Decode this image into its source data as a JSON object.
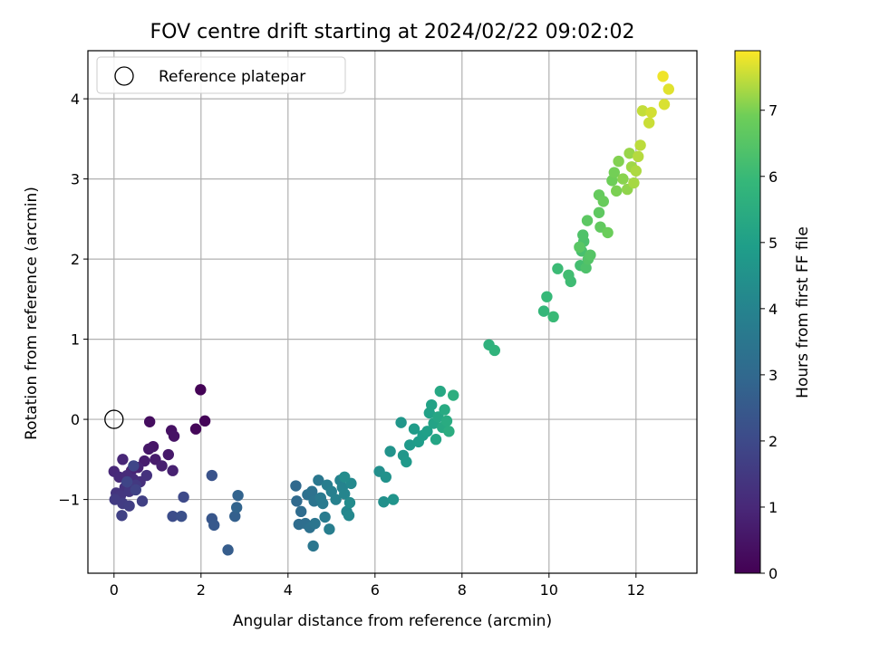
{
  "chart_data": {
    "type": "scatter",
    "title": "FOV centre drift starting at 2024/02/22 09:02:02",
    "xlabel": "Angular distance from reference (arcmin)",
    "ylabel": "Rotation from reference (arcmin)",
    "xlim": [
      -0.6,
      13.4
    ],
    "ylim": [
      -1.92,
      4.6
    ],
    "xticks": [
      0,
      2,
      4,
      6,
      8,
      10,
      12
    ],
    "yticks": [
      -1,
      0,
      1,
      2,
      3,
      4
    ],
    "grid": true,
    "legend": {
      "position": "top-left",
      "entries": [
        "Reference platepar"
      ]
    },
    "colorbar": {
      "label": "Hours from first FF file",
      "range": [
        0,
        7.9
      ],
      "ticks": [
        0,
        1,
        2,
        3,
        4,
        5,
        6,
        7
      ],
      "colormap": "viridis"
    },
    "colors": {
      "grid": "#b0b0b0",
      "reference_marker": "#000000"
    },
    "reference": {
      "x": 0,
      "y": 0
    },
    "points": [
      [
        1.99,
        0.37,
        0.05
      ],
      [
        2.09,
        -0.02,
        0.1
      ],
      [
        1.88,
        -0.12,
        0.15
      ],
      [
        0.82,
        -0.03,
        0.3
      ],
      [
        1.32,
        -0.14,
        0.4
      ],
      [
        1.38,
        -0.21,
        0.45
      ],
      [
        0.9,
        -0.34,
        0.5
      ],
      [
        0.8,
        -0.37,
        0.55
      ],
      [
        1.25,
        -0.44,
        0.6
      ],
      [
        0.95,
        -0.5,
        0.65
      ],
      [
        0.7,
        -0.52,
        0.7
      ],
      [
        1.1,
        -0.58,
        0.75
      ],
      [
        1.35,
        -0.64,
        0.8
      ],
      [
        0.55,
        -0.6,
        0.85
      ],
      [
        0.4,
        -0.64,
        0.9
      ],
      [
        0.2,
        -0.5,
        0.95
      ],
      [
        0.0,
        -0.65,
        1.0
      ],
      [
        0.12,
        -0.72,
        1.05
      ],
      [
        0.3,
        -0.7,
        1.1
      ],
      [
        0.45,
        -0.75,
        1.15
      ],
      [
        0.6,
        -0.78,
        1.2
      ],
      [
        0.75,
        -0.7,
        1.25
      ],
      [
        0.25,
        -0.85,
        1.3
      ],
      [
        0.05,
        -0.92,
        1.35
      ],
      [
        0.15,
        -0.95,
        1.4
      ],
      [
        0.35,
        -0.9,
        1.45
      ],
      [
        0.5,
        -0.82,
        1.5
      ],
      [
        0.02,
        -1.0,
        1.55
      ],
      [
        0.2,
        -1.05,
        1.6
      ],
      [
        0.35,
        -1.08,
        1.65
      ],
      [
        0.65,
        -1.02,
        1.7
      ],
      [
        0.18,
        -1.2,
        1.75
      ],
      [
        0.5,
        -0.88,
        1.8
      ],
      [
        0.3,
        -0.78,
        1.85
      ],
      [
        0.45,
        -0.58,
        1.9
      ],
      [
        1.6,
        -0.97,
        2.0
      ],
      [
        1.35,
        -1.21,
        2.1
      ],
      [
        1.55,
        -1.21,
        2.2
      ],
      [
        2.25,
        -0.7,
        2.3
      ],
      [
        2.25,
        -1.24,
        2.4
      ],
      [
        2.3,
        -1.32,
        2.5
      ],
      [
        2.62,
        -1.63,
        2.6
      ],
      [
        2.78,
        -1.21,
        2.7
      ],
      [
        2.85,
        -0.95,
        2.8
      ],
      [
        2.82,
        -1.1,
        2.85
      ],
      [
        4.18,
        -0.83,
        3.0
      ],
      [
        4.2,
        -1.02,
        3.05
      ],
      [
        4.3,
        -1.15,
        3.1
      ],
      [
        4.25,
        -1.31,
        3.15
      ],
      [
        4.4,
        -1.3,
        3.2
      ],
      [
        4.45,
        -0.94,
        3.25
      ],
      [
        4.5,
        -1.35,
        3.3
      ],
      [
        4.55,
        -0.9,
        3.35
      ],
      [
        4.6,
        -1.02,
        3.4
      ],
      [
        4.62,
        -1.3,
        3.45
      ],
      [
        4.58,
        -1.58,
        3.5
      ],
      [
        4.7,
        -0.76,
        3.55
      ],
      [
        4.75,
        -0.98,
        3.6
      ],
      [
        4.8,
        -1.05,
        3.65
      ],
      [
        4.85,
        -1.22,
        3.7
      ],
      [
        4.9,
        -0.82,
        3.75
      ],
      [
        4.95,
        -1.37,
        3.8
      ],
      [
        5.0,
        -0.9,
        3.85
      ],
      [
        5.1,
        -1.0,
        3.9
      ],
      [
        5.2,
        -0.76,
        3.95
      ],
      [
        5.25,
        -0.85,
        4.0
      ],
      [
        5.3,
        -0.93,
        4.05
      ],
      [
        5.35,
        -1.15,
        4.1
      ],
      [
        5.4,
        -1.2,
        4.15
      ],
      [
        5.45,
        -0.8,
        4.2
      ],
      [
        5.42,
        -1.04,
        4.25
      ],
      [
        5.3,
        -0.72,
        4.3
      ],
      [
        6.1,
        -0.65,
        4.4
      ],
      [
        6.2,
        -1.03,
        4.45
      ],
      [
        6.25,
        -0.72,
        4.5
      ],
      [
        6.35,
        -0.4,
        4.55
      ],
      [
        6.42,
        -1.0,
        4.6
      ],
      [
        6.6,
        -0.04,
        4.65
      ],
      [
        6.65,
        -0.45,
        4.7
      ],
      [
        6.72,
        -0.53,
        4.75
      ],
      [
        6.8,
        -0.32,
        4.8
      ],
      [
        6.9,
        -0.12,
        4.85
      ],
      [
        7.0,
        -0.28,
        4.9
      ],
      [
        7.1,
        -0.2,
        4.95
      ],
      [
        7.2,
        -0.15,
        5.0
      ],
      [
        7.25,
        0.08,
        5.05
      ],
      [
        7.3,
        0.18,
        5.1
      ],
      [
        7.35,
        -0.05,
        5.15
      ],
      [
        7.4,
        -0.25,
        5.2
      ],
      [
        7.45,
        0.03,
        5.25
      ],
      [
        7.5,
        0.35,
        5.3
      ],
      [
        7.55,
        -0.1,
        5.35
      ],
      [
        7.6,
        0.12,
        5.4
      ],
      [
        7.65,
        -0.02,
        5.45
      ],
      [
        7.7,
        -0.15,
        5.5
      ],
      [
        7.8,
        0.3,
        5.55
      ],
      [
        8.62,
        0.93,
        5.7
      ],
      [
        8.75,
        0.86,
        5.75
      ],
      [
        9.88,
        1.35,
        5.9
      ],
      [
        9.95,
        1.53,
        5.95
      ],
      [
        10.1,
        1.28,
        6.0
      ],
      [
        10.2,
        1.88,
        6.05
      ],
      [
        10.5,
        1.72,
        6.1
      ],
      [
        10.45,
        1.8,
        6.15
      ],
      [
        10.72,
        1.92,
        6.2
      ],
      [
        10.75,
        2.1,
        6.25
      ],
      [
        10.8,
        2.22,
        6.3
      ],
      [
        10.85,
        1.89,
        6.35
      ],
      [
        10.78,
        2.3,
        6.4
      ],
      [
        10.9,
        2.0,
        6.45
      ],
      [
        10.95,
        2.05,
        6.5
      ],
      [
        10.7,
        2.15,
        6.55
      ],
      [
        10.88,
        2.48,
        6.6
      ],
      [
        11.15,
        2.58,
        6.65
      ],
      [
        11.18,
        2.4,
        6.7
      ],
      [
        11.15,
        2.8,
        6.75
      ],
      [
        11.25,
        2.72,
        6.8
      ],
      [
        11.35,
        2.33,
        6.85
      ],
      [
        11.45,
        2.98,
        6.9
      ],
      [
        11.5,
        3.08,
        6.95
      ],
      [
        11.55,
        2.85,
        7.0
      ],
      [
        11.6,
        3.22,
        7.05
      ],
      [
        11.7,
        3.0,
        7.1
      ],
      [
        11.8,
        2.87,
        7.15
      ],
      [
        11.85,
        3.32,
        7.2
      ],
      [
        11.9,
        3.15,
        7.25
      ],
      [
        11.95,
        2.95,
        7.3
      ],
      [
        12.0,
        3.1,
        7.35
      ],
      [
        12.05,
        3.28,
        7.4
      ],
      [
        12.1,
        3.42,
        7.45
      ],
      [
        12.15,
        3.85,
        7.5
      ],
      [
        12.3,
        3.7,
        7.55
      ],
      [
        12.35,
        3.83,
        7.6
      ],
      [
        12.65,
        3.93,
        7.65
      ],
      [
        12.75,
        4.12,
        7.7
      ],
      [
        12.62,
        4.28,
        7.8
      ]
    ]
  }
}
